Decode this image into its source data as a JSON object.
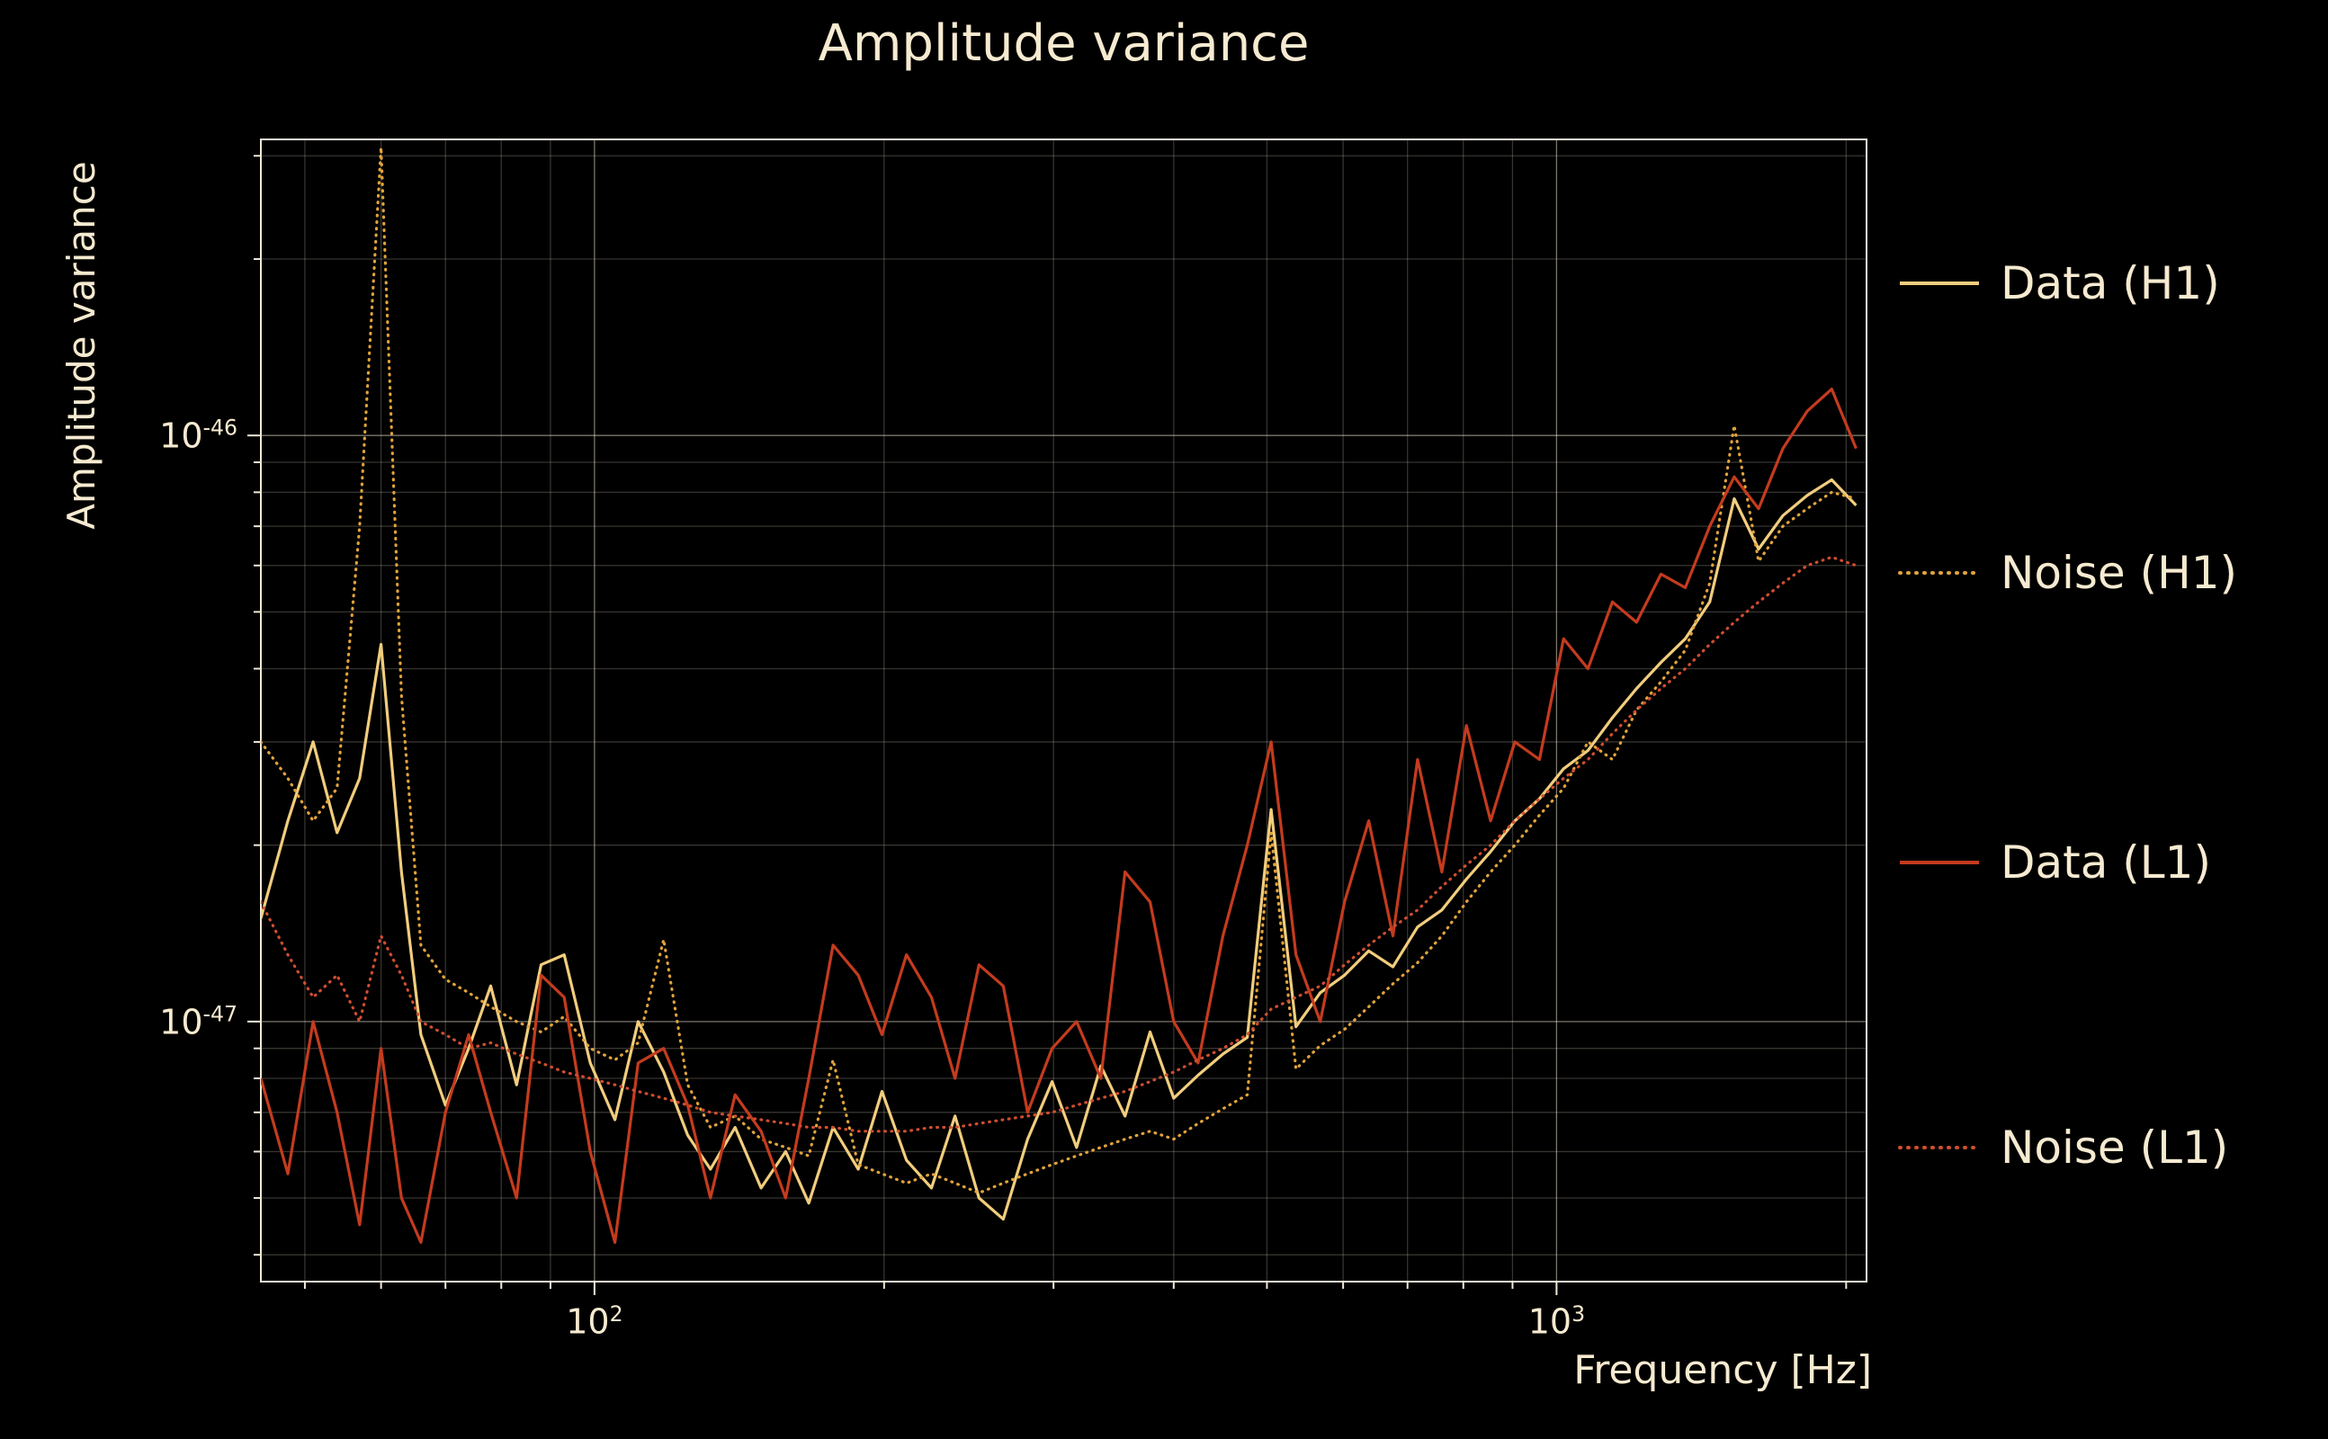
{
  "chart_data": {
    "type": "line",
    "title": "Amplitude variance",
    "xlabel": "Frequency [Hz]",
    "ylabel": "Amplitude variance",
    "xscale": "log",
    "yscale": "log",
    "xlim": [
      45,
      2100
    ],
    "ylim": [
      3.6e-48,
      3.2e-46
    ],
    "grid": true,
    "legend_position": "right-outside",
    "colors": {
      "background": "#000000",
      "text": "#f6ead0",
      "axes": "#efe8d6",
      "grid_major": "rgba(246,238,220,0.50)",
      "grid_minor": "rgba(246,238,220,0.22)"
    },
    "x_ticks": [
      {
        "value": 100,
        "label": "10^2"
      },
      {
        "value": 1000,
        "label": "10^3"
      }
    ],
    "y_ticks": [
      {
        "value": 1e-46,
        "label": "10^-46"
      },
      {
        "value": 1e-47,
        "label": "10^-47"
      }
    ],
    "x": [
      45,
      48,
      51,
      54,
      57,
      60,
      63,
      66,
      70,
      74,
      78,
      83,
      88,
      93,
      99,
      105,
      111,
      118,
      125,
      132,
      140,
      149,
      158,
      167,
      177,
      188,
      199,
      211,
      224,
      237,
      251,
      266,
      282,
      299,
      317,
      336,
      356,
      378,
      400,
      424,
      450,
      477,
      505,
      536,
      568,
      602,
      638,
      676,
      717,
      760,
      806,
      854,
      905,
      960,
      1017,
      1078,
      1143,
      1211,
      1284,
      1361,
      1443,
      1530,
      1622,
      1719,
      1822,
      1932,
      2048
    ],
    "series": [
      {
        "name": "Data (H1)",
        "color": "#f1cd7d",
        "style": "solid",
        "values": [
          1.5e-47,
          2.2e-47,
          3e-47,
          2.1e-47,
          2.6e-47,
          4.4e-47,
          1.8e-47,
          9.5e-48,
          7.2e-48,
          9e-48,
          1.15e-47,
          7.8e-48,
          1.25e-47,
          1.3e-47,
          8.5e-48,
          6.8e-48,
          1e-47,
          8.2e-48,
          6.4e-48,
          5.6e-48,
          6.6e-48,
          5.2e-48,
          6e-48,
          4.9e-48,
          6.6e-48,
          5.6e-48,
          7.6e-48,
          5.8e-48,
          5.2e-48,
          6.9e-48,
          5e-48,
          4.6e-48,
          6.3e-48,
          7.9e-48,
          6.1e-48,
          8.4e-48,
          6.9e-48,
          9.6e-48,
          7.4e-48,
          8.1e-48,
          8.8e-48,
          9.4e-48,
          2.3e-47,
          9.8e-48,
          1.12e-47,
          1.2e-47,
          1.32e-47,
          1.24e-47,
          1.45e-47,
          1.55e-47,
          1.75e-47,
          1.95e-47,
          2.2e-47,
          2.4e-47,
          2.7e-47,
          2.9e-47,
          3.3e-47,
          3.7e-47,
          4.1e-47,
          4.5e-47,
          5.2e-47,
          7.8e-47,
          6.4e-47,
          7.3e-47,
          7.9e-47,
          8.4e-47,
          7.6e-47
        ]
      },
      {
        "name": "Noise (H1)",
        "color": "#e0a33c",
        "style": "dotted",
        "values": [
          3e-47,
          2.6e-47,
          2.2e-47,
          2.5e-47,
          7e-47,
          3.1e-46,
          3.6e-47,
          1.35e-47,
          1.18e-47,
          1.12e-47,
          1.06e-47,
          1e-47,
          9.6e-48,
          1.02e-47,
          9e-48,
          8.6e-48,
          9.2e-48,
          1.38e-47,
          7.8e-48,
          6.6e-48,
          6.9e-48,
          6.3e-48,
          6.1e-48,
          5.9e-48,
          8.6e-48,
          5.7e-48,
          5.5e-48,
          5.3e-48,
          5.5e-48,
          5.3e-48,
          5.1e-48,
          5.3e-48,
          5.5e-48,
          5.7e-48,
          5.9e-48,
          6.1e-48,
          6.3e-48,
          6.5e-48,
          6.3e-48,
          6.7e-48,
          7.1e-48,
          7.5e-48,
          2.1e-47,
          8.3e-48,
          9.1e-48,
          9.7e-48,
          1.06e-47,
          1.16e-47,
          1.26e-47,
          1.4e-47,
          1.6e-47,
          1.8e-47,
          2e-47,
          2.25e-47,
          2.5e-47,
          3e-47,
          2.8e-47,
          3.4e-47,
          3.8e-47,
          4.3e-47,
          5.6e-47,
          1.04e-46,
          6.1e-47,
          7e-47,
          7.5e-47,
          8e-47,
          7.8e-47
        ]
      },
      {
        "name": "Data (L1)",
        "color": "#c43b1e",
        "style": "solid",
        "values": [
          8e-48,
          5.5e-48,
          1e-47,
          7e-48,
          4.5e-48,
          9e-48,
          5e-48,
          4.2e-48,
          7e-48,
          9.5e-48,
          7e-48,
          5e-48,
          1.2e-47,
          1.1e-47,
          6e-48,
          4.2e-48,
          8.5e-48,
          9e-48,
          7.2e-48,
          5e-48,
          7.5e-48,
          6.5e-48,
          5e-48,
          8e-48,
          1.35e-47,
          1.2e-47,
          9.5e-48,
          1.3e-47,
          1.1e-47,
          8e-48,
          1.25e-47,
          1.15e-47,
          7e-48,
          9e-48,
          1e-47,
          8e-48,
          1.8e-47,
          1.6e-47,
          1e-47,
          8.5e-48,
          1.4e-47,
          2e-47,
          3e-47,
          1.3e-47,
          1e-47,
          1.6e-47,
          2.2e-47,
          1.4e-47,
          2.8e-47,
          1.8e-47,
          3.2e-47,
          2.2e-47,
          3e-47,
          2.8e-47,
          4.5e-47,
          4e-47,
          5.2e-47,
          4.8e-47,
          5.8e-47,
          5.5e-47,
          7e-47,
          8.5e-47,
          7.5e-47,
          9.5e-47,
          1.1e-46,
          1.2e-46,
          9.5e-47
        ]
      },
      {
        "name": "Noise (L1)",
        "color": "#cf4e30",
        "style": "dotted",
        "values": [
          1.6e-47,
          1.3e-47,
          1.1e-47,
          1.2e-47,
          1e-47,
          1.4e-47,
          1.2e-47,
          1e-47,
          9.5e-48,
          9e-48,
          9.2e-48,
          8.8e-48,
          8.5e-48,
          8.2e-48,
          8e-48,
          7.8e-48,
          7.6e-48,
          7.4e-48,
          7.2e-48,
          7e-48,
          6.9e-48,
          6.8e-48,
          6.7e-48,
          6.6e-48,
          6.6e-48,
          6.5e-48,
          6.5e-48,
          6.5e-48,
          6.6e-48,
          6.6e-48,
          6.7e-48,
          6.8e-48,
          6.9e-48,
          7e-48,
          7.2e-48,
          7.4e-48,
          7.6e-48,
          7.9e-48,
          8.2e-48,
          8.6e-48,
          9e-48,
          9.5e-48,
          1.05e-47,
          1.1e-47,
          1.15e-47,
          1.25e-47,
          1.35e-47,
          1.45e-47,
          1.55e-47,
          1.7e-47,
          1.85e-47,
          2e-47,
          2.2e-47,
          2.4e-47,
          2.6e-47,
          2.8e-47,
          3.1e-47,
          3.4e-47,
          3.7e-47,
          4e-47,
          4.4e-47,
          4.8e-47,
          5.2e-47,
          5.6e-47,
          6e-47,
          6.2e-47,
          6e-47
        ]
      }
    ]
  }
}
